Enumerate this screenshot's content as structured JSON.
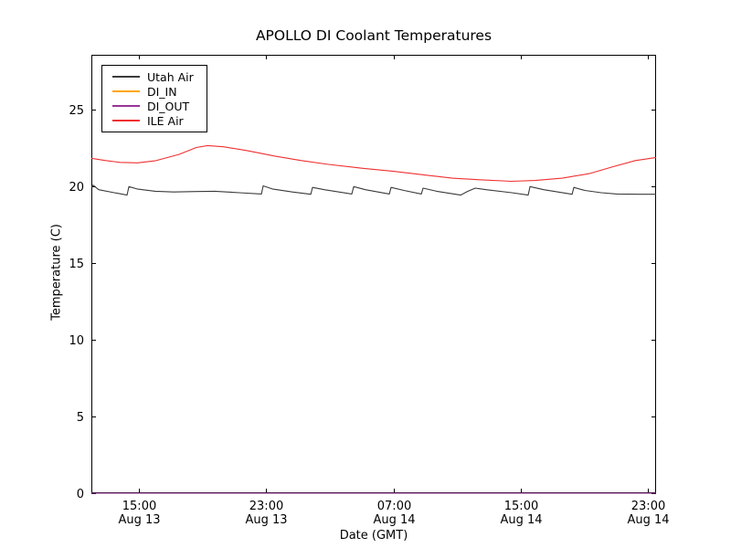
{
  "chart_data": {
    "type": "line",
    "title": "APOLLO DI Coolant Temperatures",
    "xlabel": "Date (GMT)",
    "ylabel": "Temperature (C)",
    "grid": false,
    "legend_position": "upper left",
    "background_color": "#ffffff",
    "axis_color": "#000000",
    "ylim": [
      0,
      28.6
    ],
    "yticks": [
      0,
      5,
      10,
      15,
      20,
      25
    ],
    "xlim_hours": [
      0,
      35.5
    ],
    "x_axis_note": "hours elapsed from 12:00 GMT Aug 13",
    "xticks": [
      {
        "hour": 3,
        "time": "15:00",
        "date": "Aug 13"
      },
      {
        "hour": 11,
        "time": "23:00",
        "date": "Aug 13"
      },
      {
        "hour": 19,
        "time": "07:00",
        "date": "Aug 14"
      },
      {
        "hour": 27,
        "time": "15:00",
        "date": "Aug 14"
      },
      {
        "hour": 35,
        "time": "23:00",
        "date": "Aug 14"
      }
    ],
    "series": [
      {
        "name": "Utah Air",
        "color": "#3a3a3a",
        "points": [
          [
            0,
            19.95
          ],
          [
            0.11,
            20.1
          ],
          [
            0.46,
            19.8
          ],
          [
            1.44,
            19.6
          ],
          [
            2.24,
            19.45
          ],
          [
            2.36,
            20.0
          ],
          [
            2.87,
            19.85
          ],
          [
            4.02,
            19.7
          ],
          [
            5.17,
            19.65
          ],
          [
            6.61,
            19.68
          ],
          [
            7.76,
            19.7
          ],
          [
            9.31,
            19.6
          ],
          [
            10.69,
            19.52
          ],
          [
            10.8,
            20.05
          ],
          [
            11.38,
            19.85
          ],
          [
            12.64,
            19.65
          ],
          [
            13.79,
            19.5
          ],
          [
            13.9,
            19.95
          ],
          [
            14.65,
            19.8
          ],
          [
            16.37,
            19.52
          ],
          [
            16.49,
            20.0
          ],
          [
            17.23,
            19.8
          ],
          [
            18.73,
            19.52
          ],
          [
            18.84,
            19.95
          ],
          [
            19.65,
            19.75
          ],
          [
            20.74,
            19.52
          ],
          [
            20.85,
            19.9
          ],
          [
            21.71,
            19.7
          ],
          [
            23.21,
            19.45
          ],
          [
            23.67,
            19.7
          ],
          [
            24.13,
            19.9
          ],
          [
            24.82,
            19.8
          ],
          [
            26.43,
            19.6
          ],
          [
            27.46,
            19.45
          ],
          [
            27.58,
            20.0
          ],
          [
            28.44,
            19.8
          ],
          [
            30.22,
            19.5
          ],
          [
            30.33,
            19.95
          ],
          [
            31.02,
            19.75
          ],
          [
            32.06,
            19.6
          ],
          [
            33.03,
            19.52
          ],
          [
            34.47,
            19.5
          ],
          [
            35.5,
            19.5
          ]
        ]
      },
      {
        "name": "DI_IN",
        "color": "#ffa500",
        "points": [
          [
            0,
            0
          ],
          [
            35.5,
            0
          ]
        ]
      },
      {
        "name": "DI_OUT",
        "color": "#993399",
        "points": [
          [
            0,
            0
          ],
          [
            35.5,
            0
          ]
        ]
      },
      {
        "name": "ILE Air",
        "color": "#f03030",
        "points": [
          [
            0,
            21.85
          ],
          [
            0.9,
            21.7
          ],
          [
            1.8,
            21.58
          ],
          [
            2.9,
            21.55
          ],
          [
            4.0,
            21.68
          ],
          [
            5.5,
            22.1
          ],
          [
            6.6,
            22.55
          ],
          [
            7.3,
            22.68
          ],
          [
            8.3,
            22.6
          ],
          [
            9.8,
            22.35
          ],
          [
            11.5,
            22.0
          ],
          [
            13.2,
            21.7
          ],
          [
            14.9,
            21.45
          ],
          [
            17.0,
            21.2
          ],
          [
            19.0,
            21.0
          ],
          [
            21.0,
            20.75
          ],
          [
            22.7,
            20.55
          ],
          [
            24.4,
            20.45
          ],
          [
            26.4,
            20.35
          ],
          [
            27.9,
            20.4
          ],
          [
            29.6,
            20.55
          ],
          [
            31.3,
            20.85
          ],
          [
            32.8,
            21.3
          ],
          [
            34.2,
            21.7
          ],
          [
            35.5,
            21.9
          ]
        ]
      }
    ]
  }
}
